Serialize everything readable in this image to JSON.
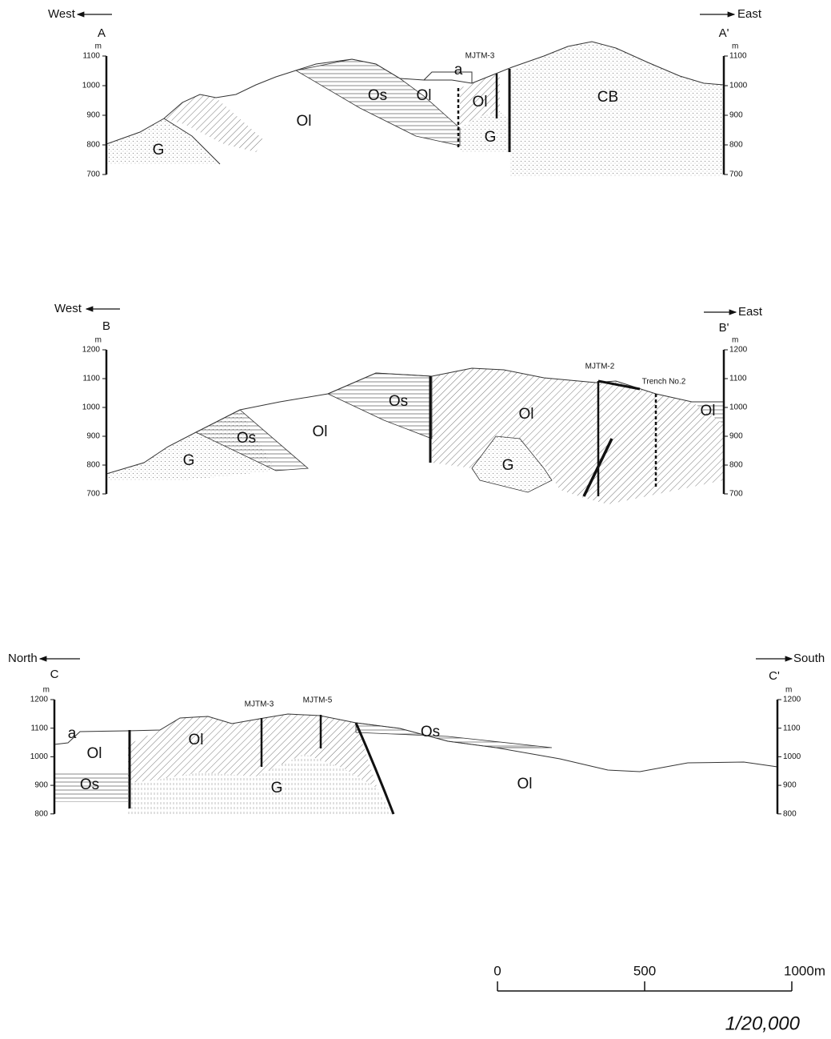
{
  "sections": [
    {
      "west": "West",
      "east": "East",
      "start": "A",
      "end": "A'",
      "unit": "m",
      "ticks": [
        1100,
        1000,
        900,
        800,
        700
      ],
      "wells": [
        "MJTM-3"
      ],
      "units": [
        "a",
        "Os",
        "Ol",
        "Ol",
        "CB",
        "Ol",
        "G",
        "G"
      ]
    },
    {
      "west": "West",
      "east": "East",
      "start": "B",
      "end": "B'",
      "unit": "m",
      "ticks": [
        1200,
        1100,
        1000,
        900,
        800,
        700
      ],
      "wells": [
        "MJTM-2",
        "Trench No.2"
      ],
      "units": [
        "Os",
        "Ol",
        "Ol",
        "Ol",
        "Os",
        "G",
        "G"
      ]
    },
    {
      "west": "North",
      "east": "South",
      "start": "C",
      "end": "C'",
      "unit": "m",
      "ticks": [
        1200,
        1100,
        1000,
        900,
        800
      ],
      "wells": [
        "MJTM-3",
        "MJTM-5"
      ],
      "units": [
        "a",
        "Ol",
        "Ol",
        "Os",
        "Os",
        "G",
        "Ol"
      ]
    }
  ],
  "scale": {
    "ticks": [
      0,
      500,
      {
        "value": 1000,
        "label": "1000m"
      }
    ],
    "ratio": "1/20,000"
  }
}
